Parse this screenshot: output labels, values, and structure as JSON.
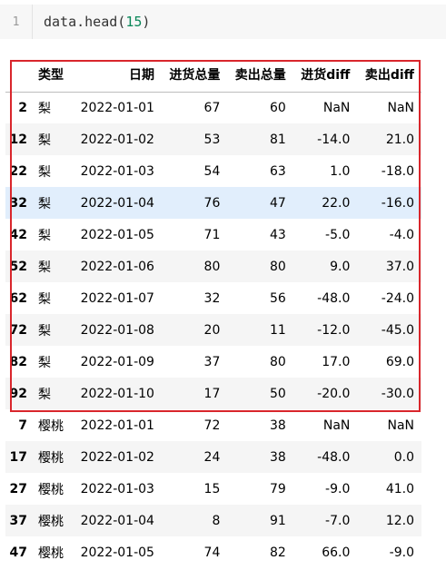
{
  "code_cell": {
    "line_number": "1",
    "code_prefix": "data.head",
    "code_open": "(",
    "code_arg": "15",
    "code_close": ")"
  },
  "table": {
    "headers": [
      "",
      "类型",
      "日期",
      "进货总量",
      "卖出总量",
      "进货diff",
      "卖出diff"
    ],
    "rows": [
      [
        "2",
        "梨",
        "2022-01-01",
        "67",
        "60",
        "NaN",
        "NaN"
      ],
      [
        "12",
        "梨",
        "2022-01-02",
        "53",
        "81",
        "-14.0",
        "21.0"
      ],
      [
        "22",
        "梨",
        "2022-01-03",
        "54",
        "63",
        "1.0",
        "-18.0"
      ],
      [
        "32",
        "梨",
        "2022-01-04",
        "76",
        "47",
        "22.0",
        "-16.0"
      ],
      [
        "42",
        "梨",
        "2022-01-05",
        "71",
        "43",
        "-5.0",
        "-4.0"
      ],
      [
        "52",
        "梨",
        "2022-01-06",
        "80",
        "80",
        "9.0",
        "37.0"
      ],
      [
        "62",
        "梨",
        "2022-01-07",
        "32",
        "56",
        "-48.0",
        "-24.0"
      ],
      [
        "72",
        "梨",
        "2022-01-08",
        "20",
        "11",
        "-12.0",
        "-45.0"
      ],
      [
        "82",
        "梨",
        "2022-01-09",
        "37",
        "80",
        "17.0",
        "69.0"
      ],
      [
        "92",
        "梨",
        "2022-01-10",
        "17",
        "50",
        "-20.0",
        "-30.0"
      ],
      [
        "7",
        "樱桃",
        "2022-01-01",
        "72",
        "38",
        "NaN",
        "NaN"
      ],
      [
        "17",
        "樱桃",
        "2022-01-02",
        "24",
        "38",
        "-48.0",
        "0.0"
      ],
      [
        "27",
        "樱桃",
        "2022-01-03",
        "15",
        "79",
        "-9.0",
        "41.0"
      ],
      [
        "37",
        "樱桃",
        "2022-01-04",
        "8",
        "91",
        "-7.0",
        "12.0"
      ],
      [
        "47",
        "樱桃",
        "2022-01-05",
        "74",
        "82",
        "66.0",
        "-9.0"
      ]
    ],
    "highlighted_row": 3
  },
  "colors": {
    "highlight_border": "#d9262c",
    "hover_row": "#e1eefc"
  }
}
